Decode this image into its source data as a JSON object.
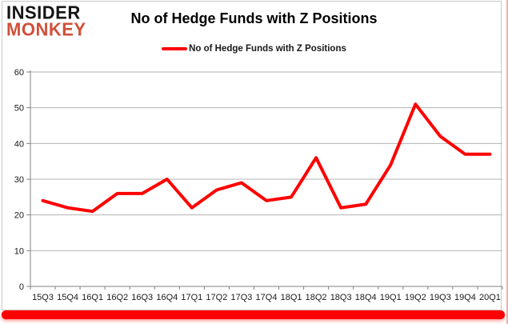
{
  "logo": {
    "line1": "INSIDER",
    "line2": "MONKEY",
    "line2_color": "#d0503a"
  },
  "header": {
    "title": "No of Hedge Funds with Z Positions"
  },
  "legend": {
    "label": "No of Hedge Funds with Z Positions",
    "line_color": "#ff0000"
  },
  "chart_data": {
    "type": "line",
    "title": "No of Hedge Funds with Z Positions",
    "categories": [
      "15Q3",
      "15Q4",
      "16Q1",
      "16Q2",
      "16Q3",
      "16Q4",
      "17Q1",
      "17Q2",
      "17Q3",
      "17Q4",
      "18Q1",
      "18Q2",
      "18Q3",
      "18Q4",
      "19Q1",
      "19Q2",
      "19Q3",
      "19Q4",
      "20Q1"
    ],
    "series": [
      {
        "name": "No of Hedge Funds with Z Positions",
        "color": "#ff0000",
        "values": [
          24,
          22,
          21,
          26,
          26,
          30,
          22,
          27,
          29,
          24,
          25,
          36,
          22,
          23,
          34,
          51,
          42,
          37,
          37
        ]
      }
    ],
    "xlabel": "",
    "ylabel": "",
    "ylim": [
      0,
      60
    ],
    "yticks": [
      0,
      10,
      20,
      30,
      40,
      50,
      60
    ],
    "grid": "horizontal",
    "legend_position": "top-center",
    "line_width": 4
  },
  "colors": {
    "grid": "#b3b3b3",
    "axis": "#808080",
    "tick_label": "#1a1a1a",
    "accent_bar": "#ff0000",
    "card_border": "#c9c9c9"
  }
}
